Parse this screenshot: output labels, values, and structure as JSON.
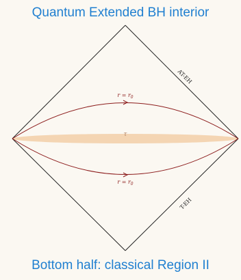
{
  "title": "Quantum Extended BH interior",
  "caption": "Bottom half: classical Region II",
  "labels": {
    "upper_edge": "AT-EH",
    "lower_edge": "T-EH",
    "upper_curve": "r = r",
    "upper_curve_sub": "0",
    "lower_curve": "r = r",
    "lower_curve_sub": "0",
    "tau": "τ"
  },
  "colors": {
    "title": "#1f7fd0",
    "curves": "#8b1a1a",
    "band": "#f2cfa8",
    "edges": "#222222"
  }
}
